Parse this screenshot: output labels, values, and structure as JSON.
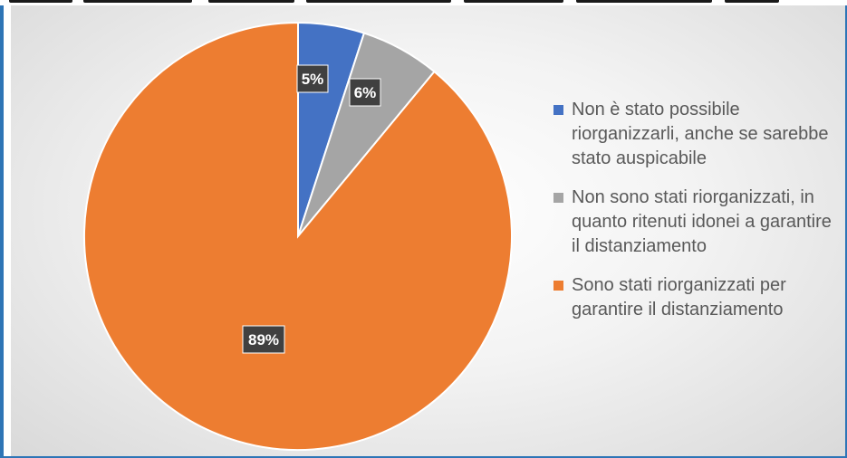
{
  "chart_data": {
    "type": "pie",
    "categories": [
      "Non è stato possibile riorganizzarli, anche se sarebbe stato auspicabile",
      "Non sono stati riorganizzati, in quanto ritenuti idonei a garantire il distanziamento",
      "Sono stati riorganizzati per garantire il distanziamento"
    ],
    "values": [
      5,
      6,
      89
    ],
    "data_labels": [
      "5%",
      "6%",
      "89%"
    ],
    "colors": [
      "#4472c4",
      "#a5a5a5",
      "#ed7d31"
    ],
    "legend_position": "right",
    "start_angle": "12 o'clock, clockwise"
  }
}
